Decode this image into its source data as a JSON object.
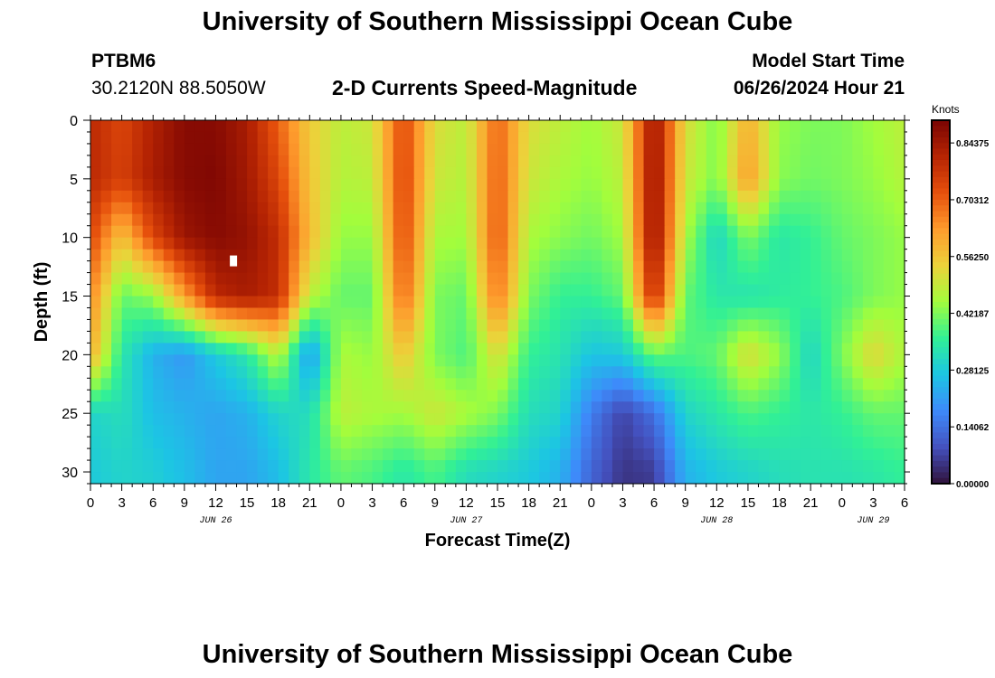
{
  "header": {
    "title": "University of Southern Mississippi Ocean Cube",
    "station_id": "PTBM6",
    "station_coords": "30.2120N  88.5050W",
    "plot_title": "2-D Currents Speed-Magnitude",
    "model_label": "Model Start Time",
    "model_time": "06/26/2024 Hour 21"
  },
  "footer": {
    "title": "University of Southern Mississippi Ocean Cube"
  },
  "chart_data": {
    "type": "heatmap",
    "title": "2-D Currents Speed-Magnitude",
    "xlabel": "Forecast Time(Z)",
    "ylabel": "Depth (ft)",
    "x_tick_labels": [
      "0",
      "3",
      "6",
      "9",
      "12",
      "15",
      "18",
      "21",
      "0",
      "3",
      "6",
      "9",
      "12",
      "15",
      "18",
      "21",
      "0",
      "3",
      "6",
      "9",
      "12",
      "15",
      "18",
      "21",
      "0",
      "3",
      "6"
    ],
    "x_hours": [
      0,
      3,
      6,
      9,
      12,
      15,
      18,
      21,
      24,
      27,
      30,
      33,
      36,
      39,
      42,
      45,
      48,
      51,
      54,
      57,
      60,
      63,
      66,
      69,
      72,
      75,
      78
    ],
    "x_date_labels": [
      {
        "label": "JUN 26",
        "hour": 12
      },
      {
        "label": "JUN 27",
        "hour": 36
      },
      {
        "label": "JUN 28",
        "hour": 60
      },
      {
        "label": "JUN 29",
        "hour": 75
      }
    ],
    "xlim": [
      0,
      78
    ],
    "y_ticks": [
      0,
      5,
      10,
      15,
      20,
      25,
      30
    ],
    "ylim": [
      0,
      31
    ],
    "colorbar": {
      "label": "Knots",
      "min": 0.0,
      "max": 0.9,
      "ticks": [
        "0.00000",
        "0.14062",
        "0.28125",
        "0.42187",
        "0.56250",
        "0.70312",
        "0.84375"
      ],
      "tick_values": [
        0.0,
        0.140625,
        0.28125,
        0.421875,
        0.5625,
        0.703125,
        0.84375
      ]
    },
    "missing_cell": {
      "hour": 13.7,
      "depth": 12
    },
    "grid": {
      "hours": [
        0,
        3,
        6,
        9,
        12,
        15,
        18,
        21,
        24,
        27,
        30,
        33,
        36,
        39,
        42,
        45,
        48,
        51,
        54,
        57,
        60,
        63,
        66,
        69,
        72,
        75,
        78
      ],
      "depths": [
        0,
        5,
        10,
        15,
        20,
        25,
        30
      ],
      "values": [
        [
          0.8,
          0.74,
          0.82,
          0.88,
          0.88,
          0.83,
          0.7,
          0.55,
          0.48,
          0.5,
          0.74,
          0.52,
          0.48,
          0.7,
          0.52,
          0.48,
          0.45,
          0.5,
          0.86,
          0.52,
          0.42,
          0.6,
          0.44,
          0.42,
          0.42,
          0.45,
          0.48
        ],
        [
          0.8,
          0.75,
          0.83,
          0.88,
          0.89,
          0.84,
          0.74,
          0.56,
          0.47,
          0.48,
          0.75,
          0.5,
          0.47,
          0.71,
          0.5,
          0.46,
          0.44,
          0.48,
          0.87,
          0.5,
          0.42,
          0.63,
          0.43,
          0.41,
          0.42,
          0.44,
          0.47
        ],
        [
          0.74,
          0.56,
          0.74,
          0.85,
          0.88,
          0.86,
          0.79,
          0.58,
          0.44,
          0.44,
          0.74,
          0.46,
          0.45,
          0.72,
          0.46,
          0.43,
          0.41,
          0.45,
          0.87,
          0.46,
          0.3,
          0.42,
          0.34,
          0.36,
          0.4,
          0.42,
          0.44
        ],
        [
          0.66,
          0.4,
          0.44,
          0.62,
          0.8,
          0.83,
          0.79,
          0.48,
          0.4,
          0.4,
          0.7,
          0.42,
          0.4,
          0.68,
          0.42,
          0.36,
          0.36,
          0.4,
          0.8,
          0.4,
          0.34,
          0.33,
          0.35,
          0.36,
          0.38,
          0.42,
          0.44
        ],
        [
          0.6,
          0.34,
          0.24,
          0.2,
          0.28,
          0.34,
          0.48,
          0.2,
          0.46,
          0.44,
          0.56,
          0.42,
          0.38,
          0.52,
          0.36,
          0.33,
          0.27,
          0.28,
          0.4,
          0.38,
          0.4,
          0.52,
          0.44,
          0.3,
          0.42,
          0.53,
          0.46
        ],
        [
          0.3,
          0.32,
          0.26,
          0.24,
          0.22,
          0.24,
          0.3,
          0.32,
          0.48,
          0.46,
          0.45,
          0.5,
          0.46,
          0.42,
          0.32,
          0.3,
          0.16,
          0.07,
          0.14,
          0.3,
          0.34,
          0.38,
          0.36,
          0.34,
          0.36,
          0.4,
          0.4
        ],
        [
          0.28,
          0.3,
          0.29,
          0.26,
          0.22,
          0.22,
          0.26,
          0.34,
          0.4,
          0.38,
          0.34,
          0.38,
          0.32,
          0.3,
          0.28,
          0.24,
          0.12,
          0.05,
          0.06,
          0.24,
          0.28,
          0.3,
          0.32,
          0.33,
          0.33,
          0.34,
          0.36
        ]
      ]
    }
  }
}
